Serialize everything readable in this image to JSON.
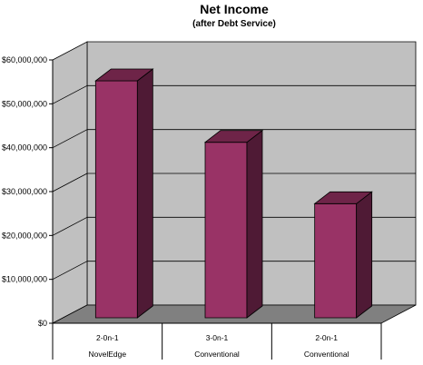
{
  "chart_data": {
    "type": "bar",
    "title": "Net Income",
    "subtitle": "(after Debt Service)",
    "xlabel": "",
    "ylabel": "",
    "ylim": [
      0,
      60000000
    ],
    "yticks": [
      "$0",
      "$10,000,000",
      "$20,000,000",
      "$30,000,000",
      "$40,000,000",
      "$50,000,000",
      "$60,000,000"
    ],
    "categories": [
      {
        "line1": "2-0n-1",
        "line2": "NovelEdge"
      },
      {
        "line1": "3-0n-1",
        "line2": "Conventional"
      },
      {
        "line1": "2-0n-1",
        "line2": "Conventional"
      }
    ],
    "values": [
      54000000,
      40000000,
      26000000
    ],
    "grid": true,
    "legend": "none",
    "colors": {
      "bar_front": "#993366",
      "bar_side": "#4f1a35",
      "bar_top": "#6e2448",
      "wall": "#c0c0c0",
      "floor": "#808080"
    }
  }
}
